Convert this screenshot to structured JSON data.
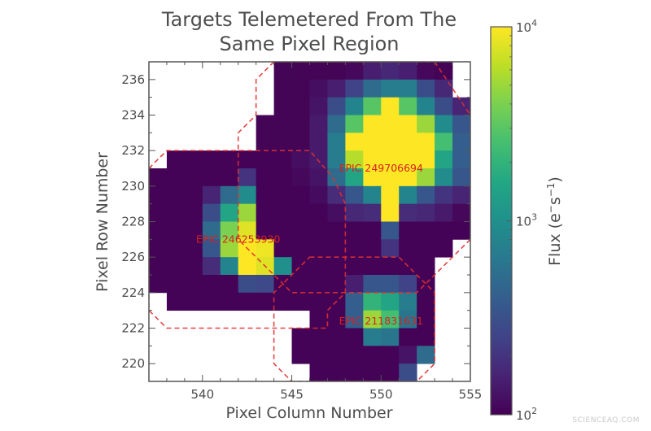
{
  "chart_data": {
    "type": "heatmap",
    "title": "Targets Telemetered From The Same Pixel Region",
    "title_lines": [
      "Targets Telemetered From The",
      "Same Pixel Region"
    ],
    "xlabel": "Pixel Column Number",
    "ylabel": "Pixel Row Number",
    "xlim": [
      537,
      555
    ],
    "ylim": [
      219,
      237
    ],
    "xticks": [
      540,
      545,
      550,
      555
    ],
    "yticks": [
      220,
      222,
      224,
      226,
      228,
      230,
      232,
      234,
      236
    ],
    "colormap": "viridis",
    "color_scale": "log",
    "colorbar": {
      "label": "Flux (e⁻s⁻¹)",
      "label_parts": {
        "base": "Flux (e",
        "sup1": "−",
        "mid": "s",
        "sup2": "−1",
        "end": ")"
      },
      "range": [
        100,
        10000
      ],
      "ticks": [
        {
          "value": 100,
          "base": "10",
          "exp": "2"
        },
        {
          "value": 1000,
          "base": "10",
          "exp": "3"
        },
        {
          "value": 10000,
          "base": "10",
          "exp": "4"
        }
      ]
    },
    "grid_origin": {
      "col_start": 537,
      "row_top": 236
    },
    "grid_note": "rows listed top (row 236) to bottom (row 219); columns 537..554; null = no data (white)",
    "grid": [
      [
        null,
        null,
        null,
        null,
        null,
        null,
        null,
        105,
        105,
        105,
        105,
        110,
        150,
        170,
        150,
        110,
        105,
        null
      ],
      [
        null,
        null,
        null,
        null,
        null,
        null,
        null,
        105,
        105,
        120,
        150,
        250,
        500,
        700,
        700,
        300,
        170,
        null
      ],
      [
        null,
        null,
        null,
        null,
        null,
        null,
        null,
        105,
        105,
        130,
        300,
        800,
        3000,
        10000,
        3000,
        800,
        300,
        160
      ],
      [
        null,
        null,
        null,
        null,
        null,
        null,
        105,
        105,
        105,
        140,
        500,
        3000,
        10000,
        10000,
        10000,
        5000,
        900,
        350
      ],
      [
        null,
        null,
        null,
        null,
        null,
        null,
        105,
        105,
        105,
        140,
        700,
        10000,
        10000,
        10000,
        10000,
        10000,
        2500,
        400
      ],
      [
        null,
        103,
        103,
        103,
        103,
        103,
        103,
        103,
        120,
        140,
        700,
        6000,
        10000,
        10000,
        10000,
        10000,
        1500,
        400
      ],
      [
        103,
        103,
        103,
        103,
        103,
        200,
        103,
        103,
        110,
        130,
        500,
        1500,
        10000,
        10000,
        10000,
        5000,
        900,
        350
      ],
      [
        103,
        103,
        103,
        160,
        500,
        900,
        103,
        103,
        103,
        115,
        180,
        350,
        800,
        10000,
        800,
        350,
        200,
        160
      ],
      [
        103,
        103,
        103,
        300,
        1500,
        5000,
        103,
        103,
        103,
        103,
        120,
        170,
        180,
        10000,
        180,
        170,
        140,
        110
      ],
      [
        103,
        103,
        103,
        500,
        4000,
        8000,
        103,
        103,
        103,
        103,
        103,
        103,
        103,
        350,
        103,
        103,
        103,
        103
      ],
      [
        103,
        103,
        103,
        350,
        5000,
        10000,
        9000,
        103,
        103,
        103,
        103,
        103,
        103,
        200,
        103,
        103,
        103,
        null
      ],
      [
        103,
        103,
        103,
        180,
        800,
        10000,
        8000,
        1000,
        103,
        103,
        103,
        103,
        103,
        103,
        103,
        103,
        null,
        null
      ],
      [
        103,
        103,
        103,
        103,
        103,
        300,
        280,
        103,
        103,
        103,
        103,
        150,
        350,
        350,
        250,
        103,
        null,
        null
      ],
      [
        null,
        103,
        103,
        103,
        103,
        103,
        103,
        103,
        103,
        103,
        103,
        400,
        2000,
        1500,
        700,
        103,
        null,
        null
      ],
      [
        null,
        null,
        null,
        null,
        null,
        null,
        null,
        null,
        null,
        103,
        103,
        400,
        5000,
        2500,
        600,
        103,
        null,
        null
      ],
      [
        null,
        null,
        null,
        null,
        null,
        null,
        null,
        null,
        103,
        103,
        103,
        103,
        700,
        600,
        103,
        103,
        null,
        null
      ],
      [
        null,
        null,
        null,
        null,
        null,
        null,
        null,
        null,
        103,
        103,
        103,
        103,
        103,
        103,
        130,
        500,
        null,
        null
      ],
      [
        null,
        null,
        null,
        null,
        null,
        null,
        null,
        null,
        null,
        103,
        103,
        103,
        103,
        103,
        300,
        null,
        null,
        null
      ]
    ],
    "apertures": [
      {
        "target": "EPIC 246253930",
        "label_pos": [
          542.0,
          227.0
        ],
        "polygon": [
          [
            537,
            231
          ],
          [
            538,
            232
          ],
          [
            546,
            232
          ],
          [
            547.3,
            230.5
          ],
          [
            548,
            229
          ],
          [
            548,
            224
          ],
          [
            547,
            223
          ],
          [
            547,
            222
          ],
          [
            538,
            222
          ],
          [
            537,
            223
          ]
        ]
      },
      {
        "target": "EPIC 249706694",
        "label_pos": [
          550.0,
          231.0
        ],
        "polygon": [
          [
            544,
            237
          ],
          [
            543,
            236
          ],
          [
            543,
            234
          ],
          [
            542,
            233
          ],
          [
            542,
            227
          ],
          [
            544,
            225
          ],
          [
            545,
            224
          ],
          [
            552,
            224
          ],
          [
            555,
            227
          ],
          [
            556,
            228
          ],
          [
            556,
            233
          ],
          [
            555,
            234
          ],
          [
            553,
            237
          ]
        ]
      },
      {
        "target": "EPIC 211831631",
        "label_pos": [
          550.0,
          222.4
        ],
        "polygon": [
          [
            546,
            226
          ],
          [
            551,
            226
          ],
          [
            553,
            224
          ],
          [
            553,
            220
          ],
          [
            552,
            219
          ],
          [
            545,
            219
          ],
          [
            544,
            220
          ],
          [
            544,
            224
          ]
        ]
      }
    ],
    "aperture_style": {
      "color": "#e03030",
      "dash": "dashed"
    },
    "grid_lines": false,
    "legend": "colorbar right"
  },
  "watermark": "SCIENCEAQ.COM"
}
